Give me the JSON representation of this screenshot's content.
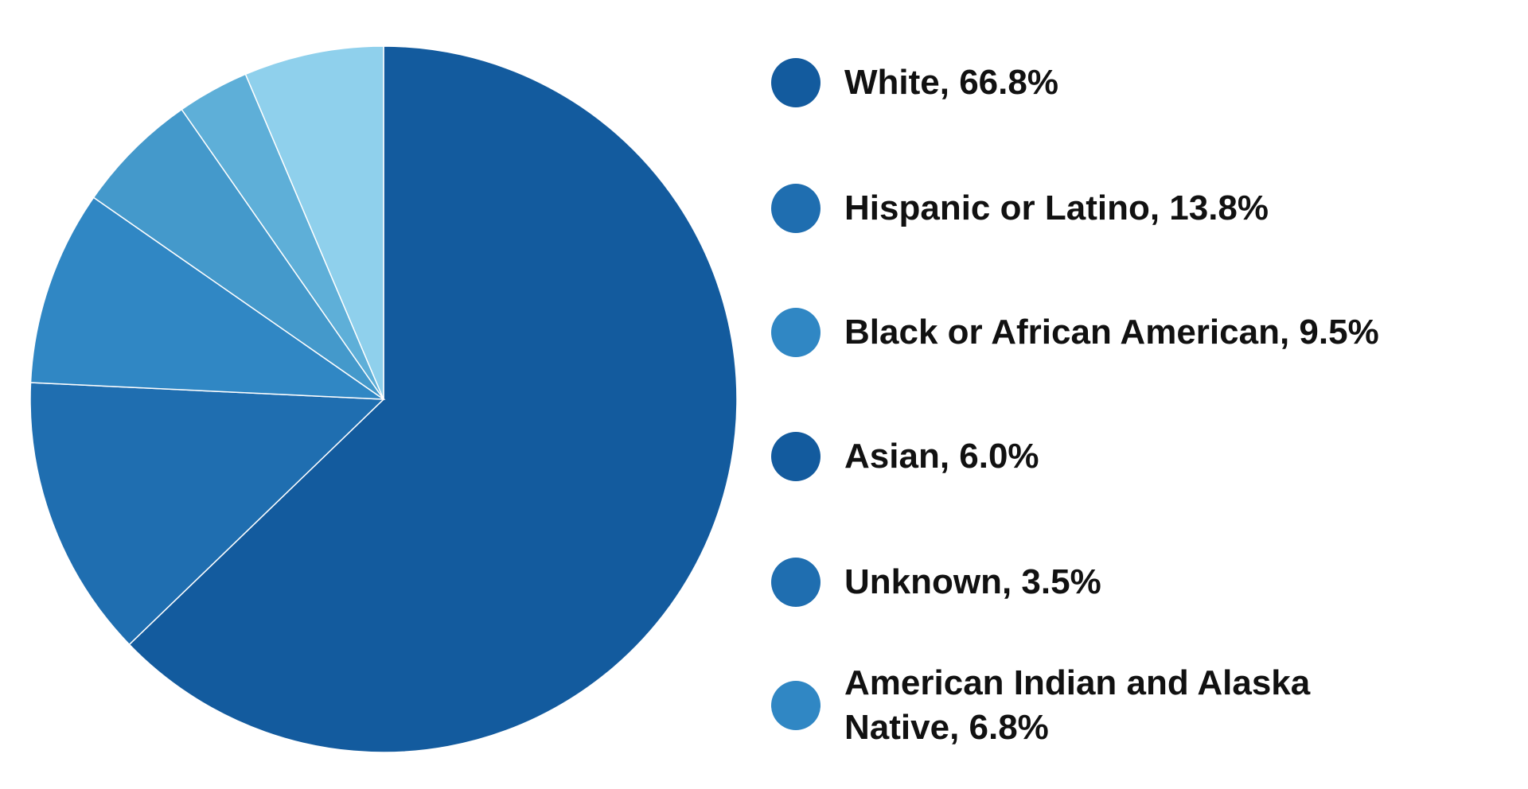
{
  "chart_data": {
    "type": "pie",
    "categories": [
      "White, 66.8%",
      "Hispanic or Latino, 13.8%",
      "Black or African American, 9.5%",
      "Asian, 6.0%",
      "Unknown, 3.5%",
      "American Indian and Alaska Native, 6.8%"
    ],
    "values": [
      66.8,
      13.8,
      9.5,
      6.0,
      3.5,
      6.8
    ],
    "colors": [
      "#135b9e",
      "#1f6eb0",
      "#3087c4",
      "#4499cb",
      "#5eafd8",
      "#8fd0ec"
    ],
    "legend_colors": [
      "#135b9e",
      "#1f6eb0",
      "#3087c4",
      "#135b9e",
      "#1f6eb0",
      "#3087c4"
    ]
  }
}
